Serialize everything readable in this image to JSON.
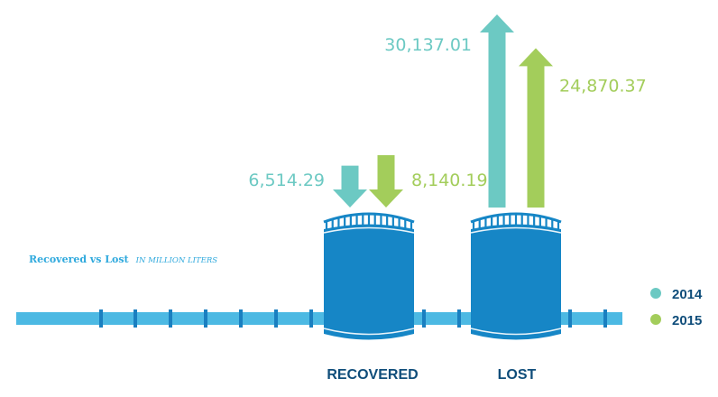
{
  "chart_data": {
    "type": "bar",
    "title": "Recovered vs Lost",
    "subtitle": "IN MILLION LITERS",
    "categories": [
      "RECOVERED",
      "LOST"
    ],
    "series": [
      {
        "name": "2014",
        "values": [
          6514.29,
          30137.01
        ],
        "labels": [
          "6,514.29",
          "30,137.01"
        ]
      },
      {
        "name": "2015",
        "values": [
          8140.19,
          24870.37
        ],
        "labels": [
          "8,140.19",
          "24,870.37"
        ]
      }
    ],
    "direction": [
      "down",
      "up"
    ],
    "legend_placement": "right"
  },
  "colors": {
    "2014": "#6cc9c3",
    "2015": "#a3cd5b",
    "tank": "#1686c6",
    "pipe": "#4cb9e3",
    "title": "#2fa9dd",
    "category": "#0f4d7a"
  },
  "icons": {
    "tank": "oil-tank-icon",
    "pipeline": "pipeline-icon"
  }
}
